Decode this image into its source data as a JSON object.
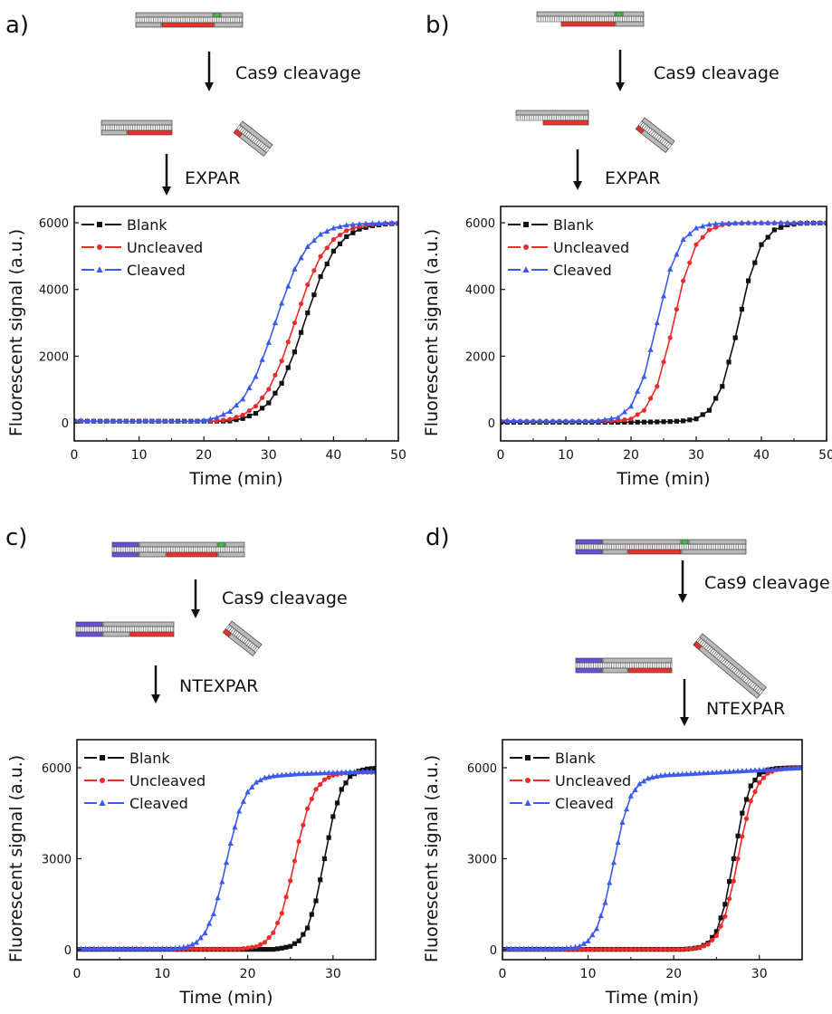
{
  "panels": [
    {
      "label": "a)",
      "step1": "Cas9 cleavage",
      "step2": "EXPAR"
    },
    {
      "label": "b)",
      "step1": "Cas9 cleavage",
      "step2": "EXPAR"
    },
    {
      "label": "c)",
      "step1": "Cas9 cleavage",
      "step2": "NTEXPAR"
    },
    {
      "label": "d)",
      "step1": "Cas9 cleavage",
      "step2": "NTEXPAR"
    }
  ],
  "colors": {
    "blank": "#111111",
    "uncleaved": "#ee2b2b",
    "cleaved": "#3b5bf0",
    "strand": "#b8b8b8",
    "target": "#e8322a",
    "pam": "#3fbf3f",
    "primer": "#6a4fd8"
  },
  "chart_data": [
    {
      "type": "line",
      "panel": "a",
      "xlabel": "Time (min)",
      "ylabel": "Fluorescent signal (a.u.)",
      "xlim": [
        0,
        50
      ],
      "ylim": [
        -540,
        6490
      ],
      "xticks": [
        0,
        10,
        20,
        30,
        40,
        50
      ],
      "yticks": [
        0,
        2000,
        4000,
        6000
      ],
      "legend": "top-left",
      "x": [
        0,
        2,
        4,
        6,
        8,
        10,
        12,
        14,
        16,
        18,
        20,
        22,
        24,
        26,
        28,
        30,
        32,
        34,
        36,
        38,
        40,
        42,
        44,
        46,
        48,
        50
      ],
      "series": [
        {
          "name": "Blank",
          "marker": "square",
          "values": [
            50,
            50,
            50,
            50,
            50,
            50,
            50,
            50,
            50,
            50,
            50,
            50,
            60,
            131,
            286,
            598,
            1186,
            2127,
            3297,
            4386,
            5150,
            5586,
            5808,
            5911,
            5960,
            5980
          ]
        },
        {
          "name": "Uncleaved",
          "marker": "circle",
          "values": [
            50,
            50,
            50,
            50,
            50,
            50,
            50,
            50,
            50,
            50,
            50,
            60,
            108,
            235,
            500,
            1008,
            1858,
            3000,
            4142,
            4992,
            5500,
            5765,
            5890,
            5950,
            5980,
            5990
          ]
        },
        {
          "name": "Cleaved",
          "marker": "triangle",
          "values": [
            80,
            60,
            50,
            50,
            50,
            50,
            50,
            50,
            50,
            50,
            73,
            160,
            345,
            715,
            1389,
            2410,
            3590,
            4611,
            5286,
            5655,
            5840,
            5928,
            5965,
            5985,
            5995,
            6000
          ]
        }
      ]
    },
    {
      "type": "line",
      "panel": "b",
      "xlabel": "Time (min)",
      "ylabel": "Fluorescent signal (a.u.)",
      "xlim": [
        0,
        50
      ],
      "ylim": [
        -540,
        6490
      ],
      "xticks": [
        0,
        10,
        20,
        30,
        40,
        50
      ],
      "yticks": [
        0,
        2000,
        4000,
        6000
      ],
      "legend": "top-left",
      "x": [
        0,
        2,
        4,
        6,
        8,
        10,
        12,
        14,
        16,
        18,
        20,
        22,
        24,
        26,
        28,
        30,
        32,
        34,
        36,
        38,
        40,
        42,
        44,
        46,
        48,
        50
      ],
      "series": [
        {
          "name": "Blank",
          "marker": "square",
          "values": [
            20,
            20,
            20,
            20,
            20,
            20,
            20,
            20,
            20,
            20,
            20,
            25,
            30,
            40,
            60,
            120,
            377,
            1095,
            2553,
            4260,
            5346,
            5786,
            5935,
            5980,
            5990,
            5990
          ]
        },
        {
          "name": "Uncleaved",
          "marker": "circle",
          "values": [
            50,
            50,
            50,
            50,
            50,
            50,
            50,
            50,
            50,
            70,
            120,
            377,
            1095,
            2553,
            4260,
            5346,
            5786,
            5935,
            5980,
            5990,
            5990,
            5990,
            5990,
            5990,
            5990,
            5990
          ]
        },
        {
          "name": "Cleaved",
          "marker": "triangle",
          "values": [
            80,
            60,
            50,
            50,
            50,
            50,
            50,
            50,
            100,
            160,
            500,
            1389,
            3000,
            4611,
            5500,
            5840,
            5950,
            5985,
            5995,
            6000,
            6000,
            6000,
            6000,
            6000,
            6000,
            6000
          ]
        }
      ]
    },
    {
      "type": "line",
      "panel": "c",
      "xlabel": "Time (min)",
      "ylabel": "Fluorescent signal (a.u.)",
      "xlim": [
        0,
        35
      ],
      "ylim": [
        -330,
        6925
      ],
      "xticks": [
        0,
        10,
        20,
        30
      ],
      "yticks": [
        0,
        3000,
        6000
      ],
      "legend": "top-left",
      "x": [
        0,
        1,
        2,
        3,
        4,
        5,
        6,
        7,
        8,
        9,
        10,
        11,
        12,
        13,
        14,
        15,
        16,
        17,
        18,
        19,
        20,
        21,
        22,
        23,
        24,
        25,
        26,
        27,
        28,
        29,
        30,
        31,
        32,
        33,
        34,
        35
      ],
      "series": [
        {
          "name": "Blank",
          "marker": "square",
          "values": [
            10,
            10,
            10,
            10,
            10,
            10,
            10,
            10,
            10,
            10,
            10,
            10,
            10,
            10,
            10,
            10,
            10,
            10,
            10,
            10,
            10,
            10,
            10,
            10,
            50,
            110,
            290,
            715,
            1610,
            3000,
            4390,
            5285,
            5715,
            5890,
            5960,
            5985
          ]
        },
        {
          "name": "Uncleaved",
          "marker": "circle",
          "values": [
            20,
            20,
            20,
            20,
            20,
            20,
            20,
            20,
            20,
            20,
            20,
            20,
            20,
            20,
            20,
            20,
            20,
            20,
            20,
            20,
            60,
            100,
            240,
            560,
            1200,
            2275,
            3570,
            4650,
            5290,
            5610,
            5750,
            5810,
            5840,
            5850,
            5850,
            5850
          ]
        },
        {
          "name": "Cleaved",
          "marker": "triangle",
          "values": [
            30,
            30,
            30,
            30,
            30,
            30,
            30,
            30,
            30,
            30,
            30,
            30,
            60,
            110,
            240,
            550,
            1180,
            2240,
            3510,
            4570,
            5200,
            5520,
            5670,
            5730,
            5760,
            5780,
            5800,
            5810,
            5820,
            5830,
            5840,
            5850,
            5860,
            5870,
            5880,
            5890
          ]
        }
      ]
    },
    {
      "type": "line",
      "panel": "d",
      "xlabel": "Time (min)",
      "ylabel": "Fluorescent signal (a.u.)",
      "xlim": [
        0,
        35
      ],
      "ylim": [
        -330,
        6925
      ],
      "xticks": [
        0,
        10,
        20,
        30
      ],
      "yticks": [
        0,
        3000,
        6000
      ],
      "legend": "top-left",
      "x": [
        0,
        1,
        2,
        3,
        4,
        5,
        6,
        7,
        8,
        9,
        10,
        11,
        12,
        13,
        14,
        15,
        16,
        17,
        18,
        19,
        20,
        21,
        22,
        23,
        24,
        25,
        26,
        27,
        28,
        29,
        30,
        31,
        32,
        33,
        34,
        35
      ],
      "series": [
        {
          "name": "Blank",
          "marker": "square",
          "values": [
            10,
            10,
            10,
            10,
            10,
            10,
            10,
            10,
            10,
            10,
            10,
            10,
            10,
            10,
            10,
            10,
            10,
            10,
            10,
            10,
            10,
            10,
            30,
            73,
            214,
            598,
            1496,
            3000,
            4504,
            5402,
            5785,
            5930,
            5975,
            5990,
            6000,
            6000
          ]
        },
        {
          "name": "Uncleaved",
          "marker": "circle",
          "values": [
            10,
            10,
            10,
            10,
            10,
            10,
            10,
            10,
            10,
            10,
            10,
            10,
            10,
            10,
            10,
            10,
            10,
            10,
            10,
            10,
            10,
            10,
            25,
            66,
            177,
            455,
            1095,
            2265,
            3735,
            4905,
            5511,
            5818,
            5933,
            5975,
            5990,
            6000
          ]
        },
        {
          "name": "Cleaved",
          "marker": "triangle",
          "values": [
            30,
            30,
            30,
            30,
            30,
            30,
            30,
            30,
            60,
            110,
            290,
            690,
            1550,
            2875,
            4200,
            5070,
            5470,
            5650,
            5720,
            5760,
            5775,
            5790,
            5805,
            5820,
            5835,
            5850,
            5865,
            5880,
            5895,
            5910,
            5925,
            5940,
            5955,
            5970,
            5985,
            6000
          ]
        }
      ]
    }
  ]
}
